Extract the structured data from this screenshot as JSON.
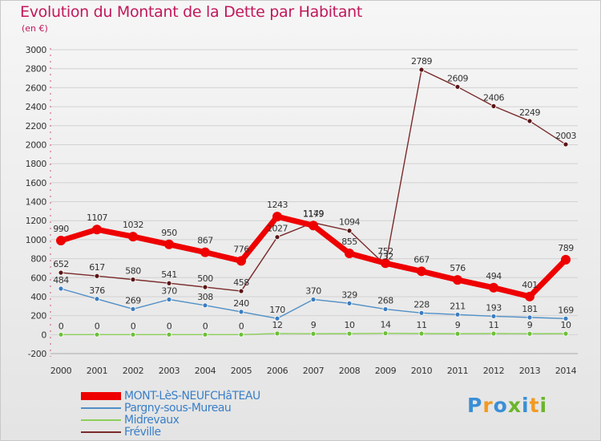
{
  "title": "Evolution du Montant de la Dette par Habitant",
  "subtitle": "(en €)",
  "logo": {
    "letters": [
      "P",
      "r",
      "o",
      "x",
      "i",
      "t",
      "i"
    ],
    "colors": [
      "#3a8fd6",
      "#f29a21",
      "#3a8fd6",
      "#6bb52c",
      "#3a8fd6",
      "#f29a21",
      "#6bb52c"
    ]
  },
  "chart_data": {
    "type": "line",
    "title": "Evolution du Montant de la Dette par Habitant",
    "ylabel": "(en €)",
    "x": [
      "2000",
      "2001",
      "2002",
      "2003",
      "2004",
      "2005",
      "2006",
      "2007",
      "2008",
      "2009",
      "2010",
      "2011",
      "2012",
      "2013",
      "2014"
    ],
    "ylim": [
      -200,
      3000
    ],
    "yticks": [
      "-200",
      "0",
      "200",
      "400",
      "600",
      "800",
      "1000",
      "1200",
      "1400",
      "1600",
      "1800",
      "2000",
      "2200",
      "2400",
      "2600",
      "2800",
      "3000"
    ],
    "grid": true,
    "legend_position": "bottom-left",
    "series": [
      {
        "name": "MONT-LèS-NEUFCHâTEAU",
        "color": "#ee0000",
        "values": [
          990,
          1107,
          1032,
          950,
          867,
          776,
          1243,
          1149,
          855,
          752,
          667,
          576,
          494,
          401,
          789
        ],
        "labels": [
          "990",
          "1107",
          "1032",
          "950",
          "867",
          "776",
          "1243",
          "1149",
          "855",
          "752",
          "667",
          "576",
          "494",
          "401",
          "789"
        ]
      },
      {
        "name": "Pargny-sous-Mureau",
        "color": "#4f8fc6",
        "values": [
          484,
          376,
          269,
          370,
          308,
          240,
          170,
          370,
          329,
          268,
          228,
          211,
          193,
          181,
          169
        ],
        "labels": [
          "484",
          "376",
          "269",
          "370",
          "308",
          "240",
          "170",
          "370",
          "329",
          "268",
          "228",
          "211",
          "193",
          "181",
          "169"
        ]
      },
      {
        "name": "Midrevaux",
        "color": "#8ccf5a",
        "values": [
          0,
          0,
          0,
          0,
          0,
          0,
          12,
          9,
          10,
          14,
          11,
          9,
          11,
          9,
          10
        ],
        "labels": [
          "0",
          "0",
          "0",
          "0",
          "0",
          "0",
          "12",
          "9",
          "10",
          "14",
          "11",
          "9",
          "11",
          "9",
          "10"
        ]
      },
      {
        "name": "Fréville",
        "color": "#7a2a2a",
        "values": [
          652,
          617,
          580,
          541,
          500,
          458,
          1027,
          1179,
          1094,
          732,
          2789,
          2609,
          2406,
          2249,
          2003
        ],
        "labels": [
          "652",
          "617",
          "580",
          "541",
          "500",
          "458",
          "1027",
          "1179",
          "1094",
          "732",
          "2789",
          "2609",
          "2406",
          "2249",
          "2003"
        ]
      }
    ]
  }
}
